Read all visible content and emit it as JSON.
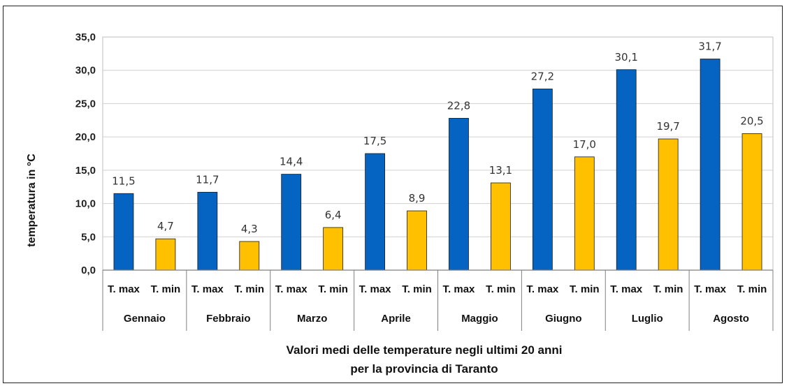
{
  "chart_data": {
    "type": "bar",
    "title": "Valori medi delle temperature negli ultimi 20 anni",
    "subtitle": "per la provincia di Taranto",
    "ylabel": "temperatura in °C",
    "xlabel": "",
    "ylim": [
      0,
      35
    ],
    "yticks": [
      "0,0",
      "5,0",
      "10,0",
      "15,0",
      "20,0",
      "25,0",
      "30,0",
      "35,0"
    ],
    "categories": [
      "Gennaio",
      "Febbraio",
      "Marzo",
      "Aprile",
      "Maggio",
      "Giugno",
      "Luglio",
      "Agosto"
    ],
    "sublabels": [
      "T. max",
      "T. min"
    ],
    "series": [
      {
        "values": [
          11.5,
          11.7,
          14.4,
          17.5,
          22.8,
          27.2,
          30.1,
          31.7
        ],
        "labels": [
          "11,5",
          "11,7",
          "14,4",
          "17,5",
          "22,8",
          "27,2",
          "30,1",
          "31,7"
        ],
        "color": "#0563C1"
      },
      {
        "values": [
          4.7,
          4.3,
          6.4,
          8.9,
          13.1,
          17.0,
          19.7,
          20.5
        ],
        "labels": [
          "4,7",
          "4,3",
          "6,4",
          "8,9",
          "13,1",
          "17,0",
          "19,7",
          "20,5"
        ],
        "color": "#FFC000"
      }
    ],
    "grid": true,
    "legend": "none"
  }
}
